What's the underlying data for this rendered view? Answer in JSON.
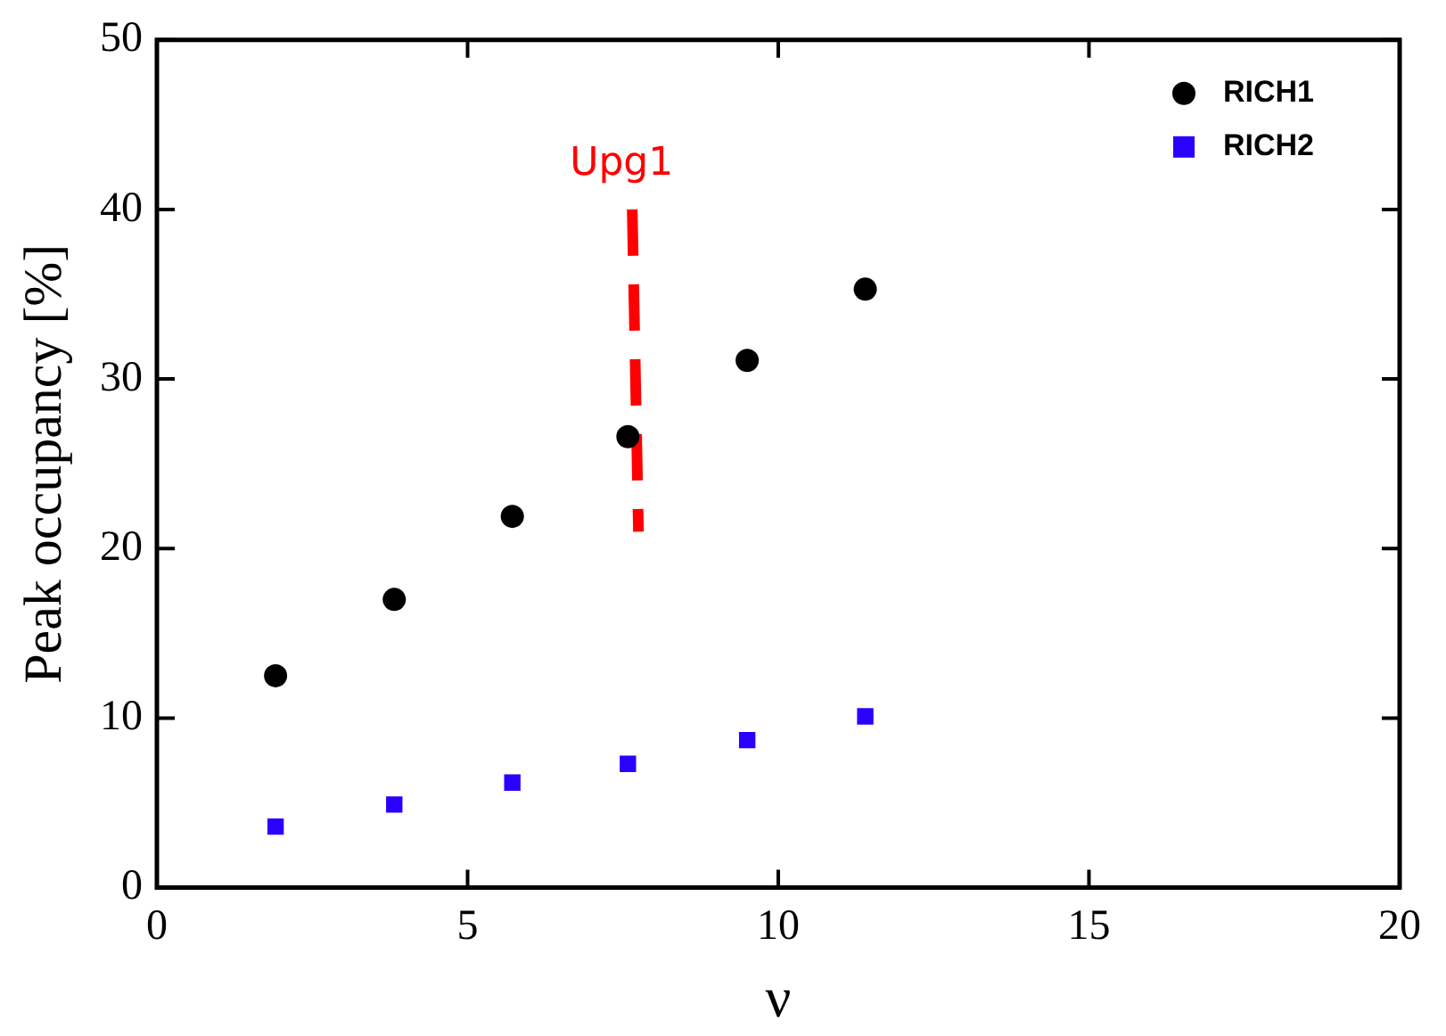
{
  "chart_data": {
    "type": "scatter",
    "xlabel": "ν",
    "ylabel": "Peak occupancy [%]",
    "xlim": [
      0,
      20
    ],
    "xticks": [
      0,
      5,
      10,
      15,
      20
    ],
    "ylim": [
      0,
      50
    ],
    "yticks": [
      0,
      10,
      20,
      30,
      40,
      50
    ],
    "grid": false,
    "legend": "top right",
    "series": [
      {
        "name": "RICH1",
        "color": "#000000",
        "marker": "circle",
        "x": [
          1.91,
          3.82,
          5.72,
          7.58,
          9.5,
          11.4
        ],
        "values": [
          12.5,
          17.0,
          21.9,
          26.6,
          31.1,
          35.3
        ]
      },
      {
        "name": "RICH2",
        "color": "#2a00ff",
        "marker": "square",
        "x": [
          1.91,
          3.82,
          5.72,
          7.58,
          9.5,
          11.4
        ],
        "values": [
          3.6,
          4.9,
          6.2,
          7.3,
          8.7,
          10.1
        ]
      },
      {
        "type": "line",
        "color": "#ff0000",
        "line_style": "dashed",
        "marker": "none",
        "x": [
          7.65,
          7.75
        ],
        "values": [
          40,
          21
        ]
      }
    ],
    "annotations": [
      "Upg1"
    ]
  }
}
